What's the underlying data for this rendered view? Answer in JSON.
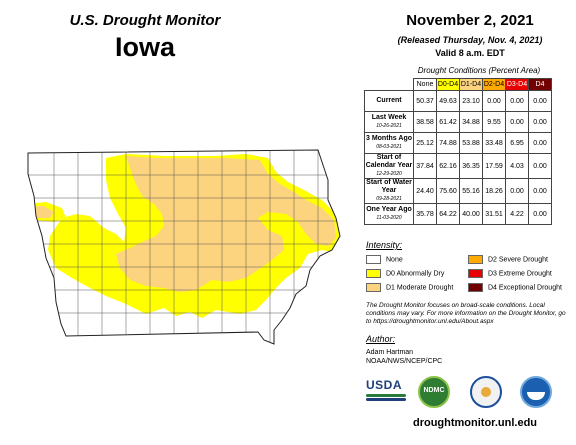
{
  "title": "U.S. Drought Monitor",
  "state": "Iowa",
  "date": "November 2, 2021",
  "released": "(Released Thursday, Nov. 4, 2021)",
  "valid": "Valid 8 a.m. EDT",
  "table": {
    "caption": "Drought Conditions (Percent Area)",
    "headers": [
      "None",
      "D0-D4",
      "D1-D4",
      "D2-D4",
      "D3-D4",
      "D4"
    ],
    "rows": [
      {
        "label": "Current",
        "sub": "",
        "values": [
          "50.37",
          "49.63",
          "23.10",
          "0.00",
          "0.00",
          "0.00"
        ]
      },
      {
        "label": "Last Week",
        "sub": "10-26-2021",
        "values": [
          "38.58",
          "61.42",
          "34.88",
          "9.55",
          "0.00",
          "0.00"
        ]
      },
      {
        "label": "3 Months Ago",
        "sub": "08-03-2021",
        "values": [
          "25.12",
          "74.88",
          "53.88",
          "33.48",
          "6.95",
          "0.00"
        ]
      },
      {
        "label": "Start of Calendar Year",
        "sub": "12-29-2020",
        "values": [
          "37.84",
          "62.16",
          "36.35",
          "17.59",
          "4.03",
          "0.00"
        ]
      },
      {
        "label": "Start of Water Year",
        "sub": "09-28-2021",
        "values": [
          "24.40",
          "75.60",
          "55.16",
          "18.26",
          "0.00",
          "0.00"
        ]
      },
      {
        "label": "One Year Ago",
        "sub": "11-03-2020",
        "values": [
          "35.78",
          "64.22",
          "40.00",
          "31.51",
          "4.22",
          "0.00"
        ]
      }
    ]
  },
  "intensity": {
    "heading": "Intensity:",
    "items": [
      {
        "label": "None",
        "color": "#ffffff"
      },
      {
        "label": "D0 Abnormally Dry",
        "color": "#ffff00"
      },
      {
        "label": "D1 Moderate Drought",
        "color": "#fcd37f"
      },
      {
        "label": "D2 Severe Drought",
        "color": "#ffaa00"
      },
      {
        "label": "D3 Extreme Drought",
        "color": "#e60000"
      },
      {
        "label": "D4 Exceptional Drought",
        "color": "#730000"
      }
    ]
  },
  "note": "The Drought Monitor focuses on broad-scale conditions. Local conditions may vary. For more information on the Drought Monitor, go to https://droughtmonitor.unl.edu/About.aspx",
  "author": {
    "heading": "Author:",
    "name": "Adam Hartman",
    "org": "NOAA/NWS/NCEP/CPC"
  },
  "logos": [
    "USDA",
    "NDMC"
  ],
  "url": "droughtmonitor.unl.edu"
}
